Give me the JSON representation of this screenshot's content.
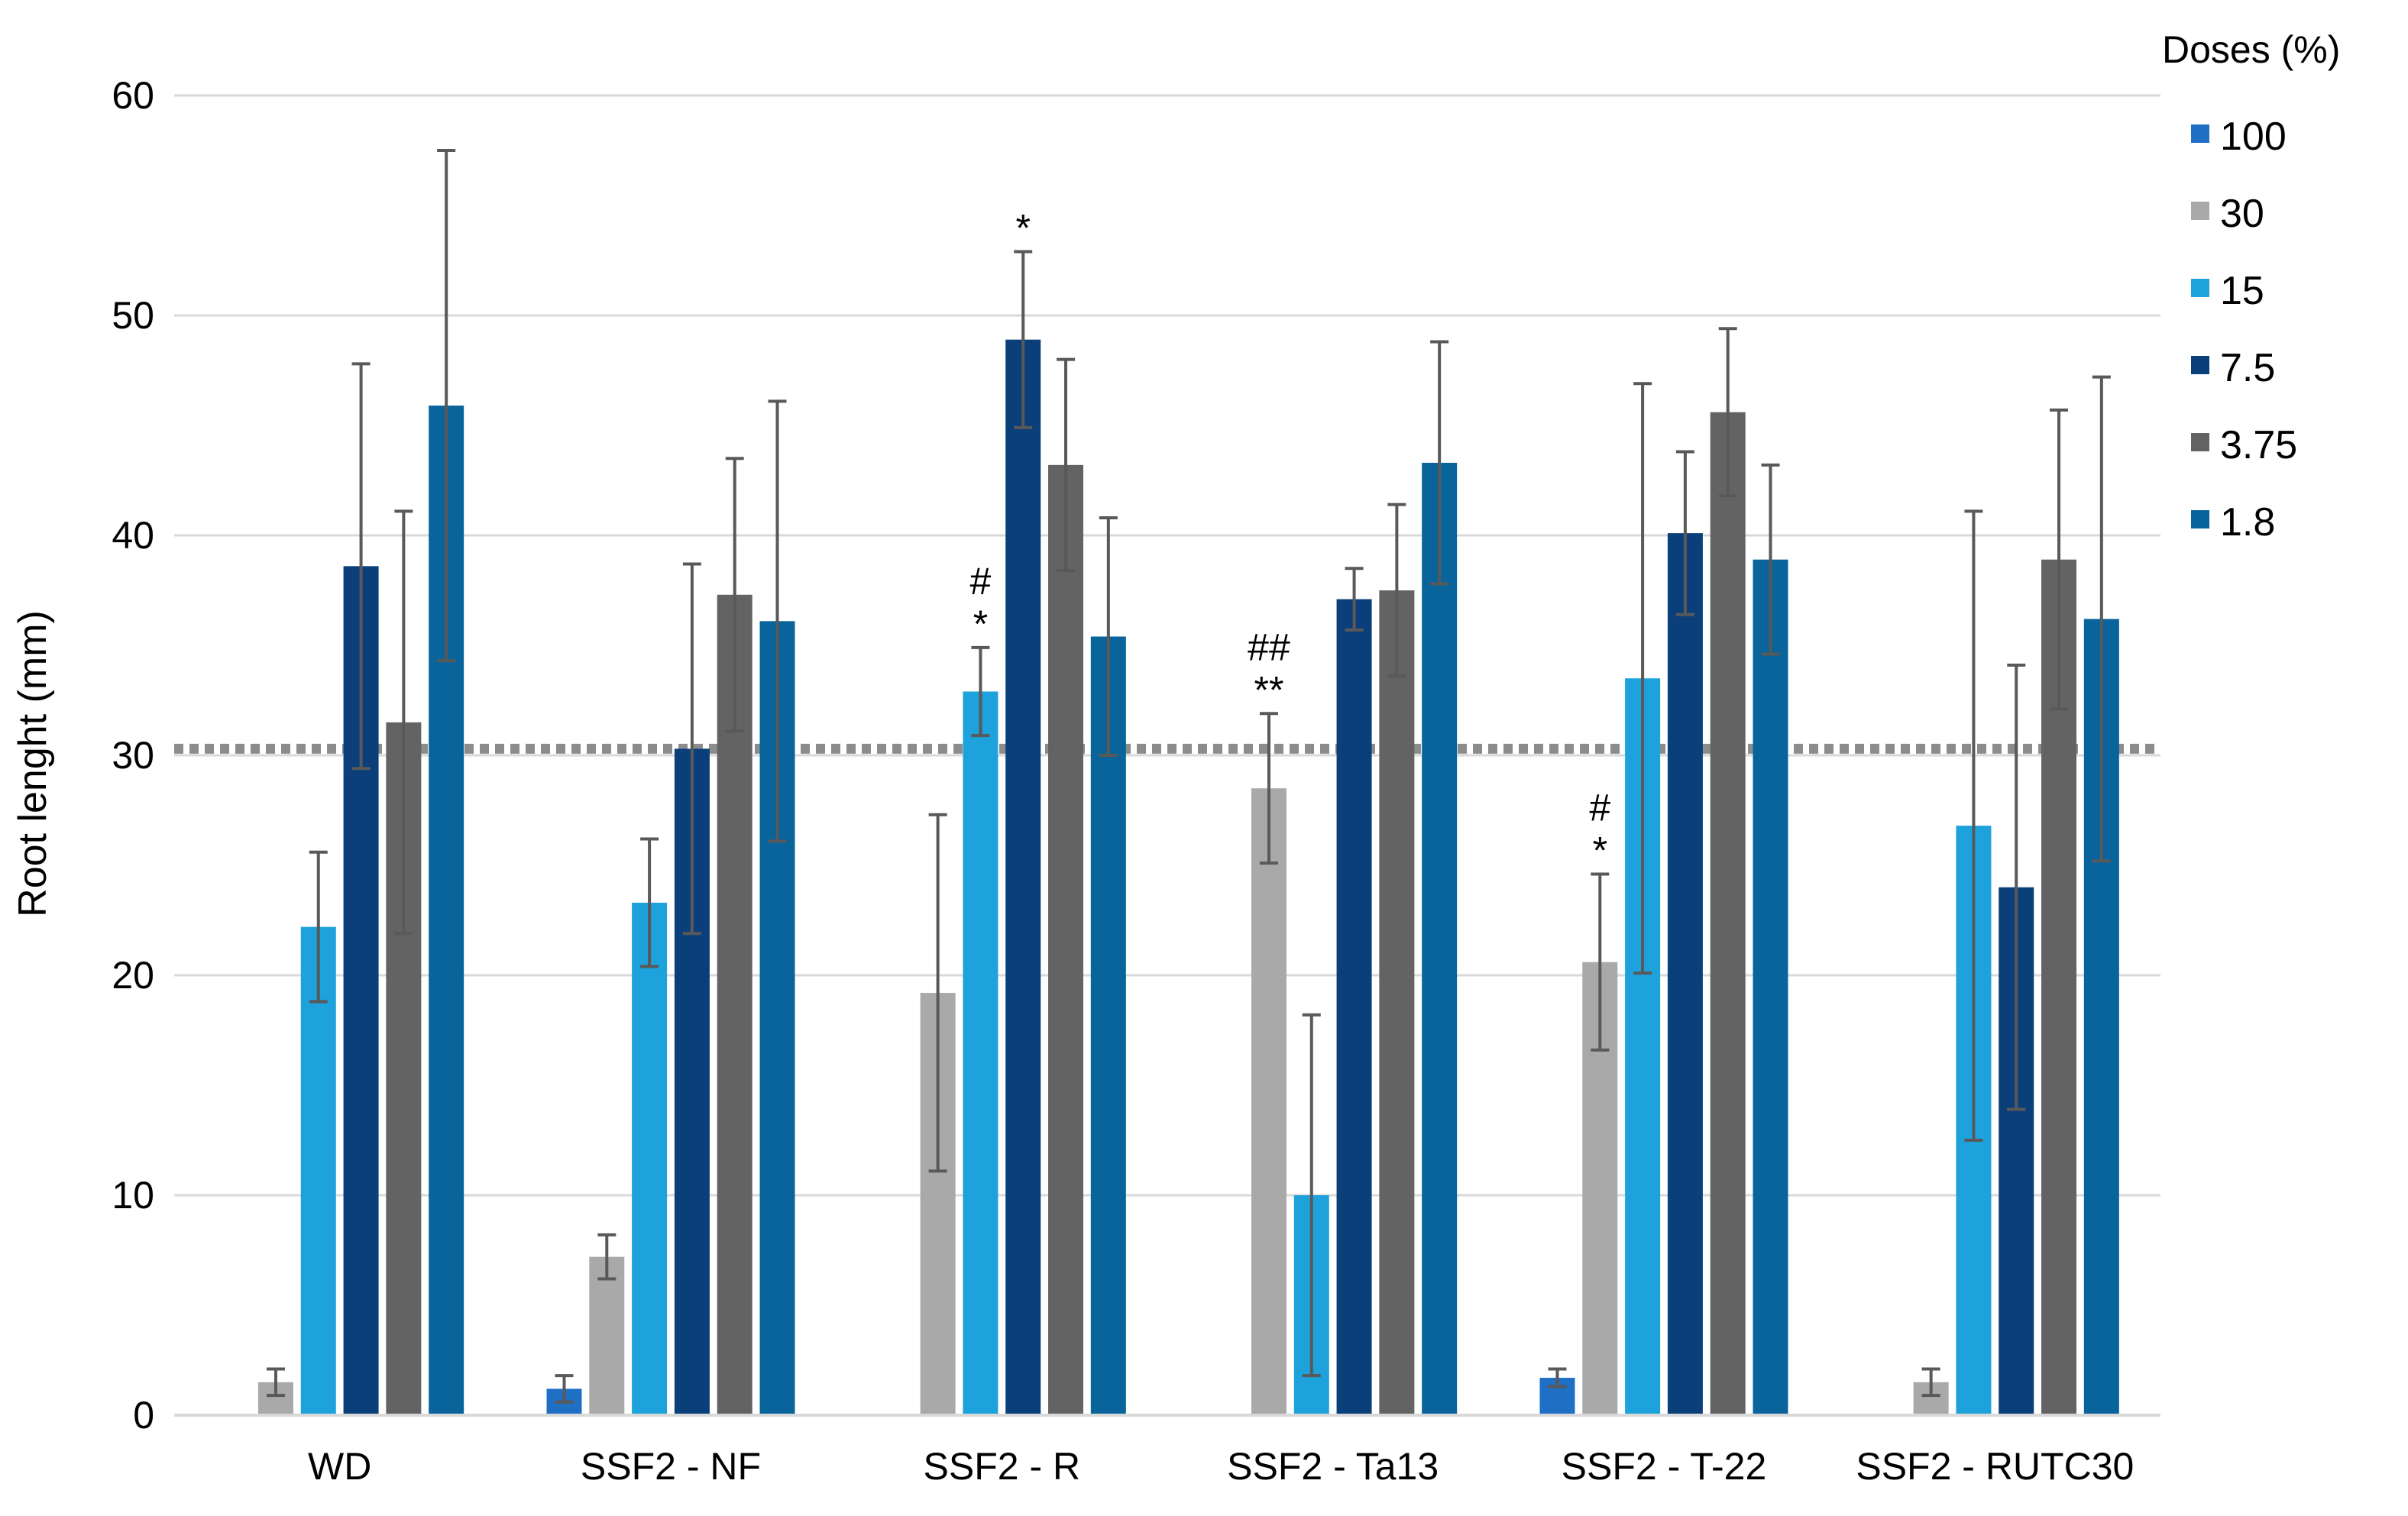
{
  "chart_data": {
    "type": "bar",
    "title": "",
    "xlabel": "",
    "ylabel": "Root lenght (mm)",
    "ylim": [
      0,
      60
    ],
    "yticks": [
      0,
      10,
      20,
      30,
      40,
      50,
      60
    ],
    "grid": true,
    "reference_line": 30.3,
    "legend_title": "Doses (%)",
    "legend_position": "right",
    "categories": [
      "WD",
      "SSF2 - NF",
      "SSF2 - R",
      "SSF2 - Ta13",
      "SSF2 - T-22",
      "SSF2 - RUTC30"
    ],
    "series": [
      {
        "name": "100",
        "color": "#1f6fc5",
        "values": [
          null,
          1.2,
          null,
          null,
          1.7,
          null
        ],
        "errors": [
          null,
          0.6,
          null,
          null,
          0.4,
          null
        ]
      },
      {
        "name": "30",
        "color": "#a9a9a9",
        "values": [
          1.5,
          7.2,
          19.2,
          28.5,
          20.6,
          1.5
        ],
        "errors": [
          0.6,
          1.0,
          8.1,
          3.4,
          4.0,
          0.6
        ]
      },
      {
        "name": "15",
        "color": "#1ea2dc",
        "values": [
          22.2,
          23.3,
          32.9,
          10.0,
          33.5,
          26.8
        ],
        "errors": [
          3.4,
          2.9,
          2.0,
          8.2,
          13.4,
          14.3
        ]
      },
      {
        "name": "7.5",
        "color": "#0b3f7a",
        "values": [
          38.6,
          30.3,
          48.9,
          37.1,
          40.1,
          24.0
        ],
        "errors": [
          9.2,
          8.4,
          4.0,
          1.4,
          3.7,
          10.1
        ]
      },
      {
        "name": "3.75",
        "color": "#636363",
        "values": [
          31.5,
          37.3,
          43.2,
          37.5,
          45.6,
          38.9
        ],
        "errors": [
          9.6,
          6.2,
          4.8,
          3.9,
          3.8,
          6.8
        ]
      },
      {
        "name": "1.8",
        "color": "#08649b",
        "values": [
          45.9,
          36.1,
          35.4,
          43.3,
          38.9,
          36.2
        ],
        "errors": [
          11.6,
          10.0,
          5.4,
          5.5,
          4.3,
          11.0
        ]
      }
    ],
    "annotations": [
      {
        "category": "SSF2 - R",
        "series": "15",
        "lines": [
          "#",
          "*"
        ]
      },
      {
        "category": "SSF2 - R",
        "series": "7.5",
        "lines": [
          "*"
        ]
      },
      {
        "category": "SSF2 - Ta13",
        "series": "30",
        "lines": [
          "##",
          "**"
        ]
      },
      {
        "category": "SSF2 - T-22",
        "series": "30",
        "lines": [
          "#",
          "*"
        ]
      }
    ]
  }
}
